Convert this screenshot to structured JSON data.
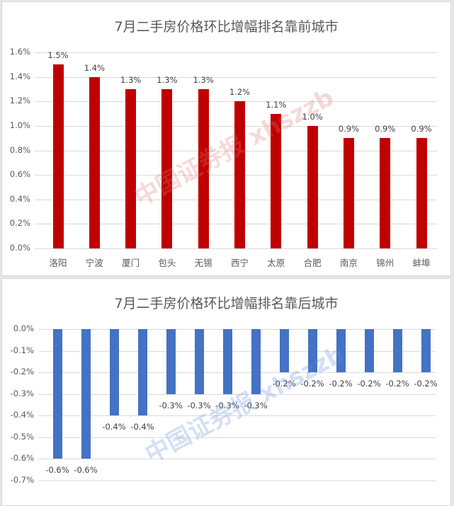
{
  "chart_data": [
    {
      "type": "bar",
      "title": "7月二手房价格环比增幅排名靠前城市",
      "categories": [
        "洛阳",
        "宁波",
        "厦门",
        "包头",
        "无锡",
        "西宁",
        "太原",
        "合肥",
        "南京",
        "锦州",
        "蚌埠"
      ],
      "values": [
        1.5,
        1.4,
        1.3,
        1.3,
        1.3,
        1.2,
        1.1,
        1.0,
        0.9,
        0.9,
        0.9
      ],
      "value_labels": [
        "1.5%",
        "1.4%",
        "1.3%",
        "1.3%",
        "1.3%",
        "1.2%",
        "1.1%",
        "1.0%",
        "0.9%",
        "0.9%",
        "0.9%"
      ],
      "unit": "%",
      "xlabel": "",
      "ylabel": "",
      "ylim": [
        0,
        1.6
      ],
      "yticks": [
        "1.6%",
        "1.4%",
        "1.2%",
        "1.0%",
        "0.8%",
        "0.6%",
        "0.4%",
        "0.2%",
        "0.0%"
      ],
      "grid": true,
      "legend": null,
      "color": "#c00000"
    },
    {
      "type": "bar",
      "title": "7月二手房价格环比增幅排名靠后城市",
      "categories": [
        "",
        "",
        "",
        "",
        "",
        "",
        "",
        "",
        "",
        "",
        "",
        "",
        "",
        ""
      ],
      "categories_note": "category labels are rotated and cut off at the image edge",
      "values": [
        -0.6,
        -0.6,
        -0.4,
        -0.4,
        -0.3,
        -0.3,
        -0.3,
        -0.3,
        -0.2,
        -0.2,
        -0.2,
        -0.2,
        -0.2,
        -0.2
      ],
      "value_labels": [
        "-0.6%",
        "-0.6%",
        "-0.4%",
        "-0.4%",
        "-0.3%",
        "-0.3%",
        "-0.3%",
        "-0.3%",
        "-0.2%",
        "-0.2%",
        "-0.2%",
        "-0.2%",
        "-0.2%",
        "-0.2%"
      ],
      "unit": "%",
      "xlabel": "",
      "ylabel": "",
      "ylim": [
        -0.7,
        0.0
      ],
      "yticks": [
        "0.0%",
        "-0.1%",
        "-0.2%",
        "-0.3%",
        "-0.4%",
        "-0.5%",
        "-0.6%",
        "-0.7%"
      ],
      "grid": true,
      "legend": null,
      "color": "#4472c4"
    }
  ],
  "watermark": {
    "top": "中国证券报 xhszzb",
    "bottom": "中国证券报 xhszzb"
  }
}
